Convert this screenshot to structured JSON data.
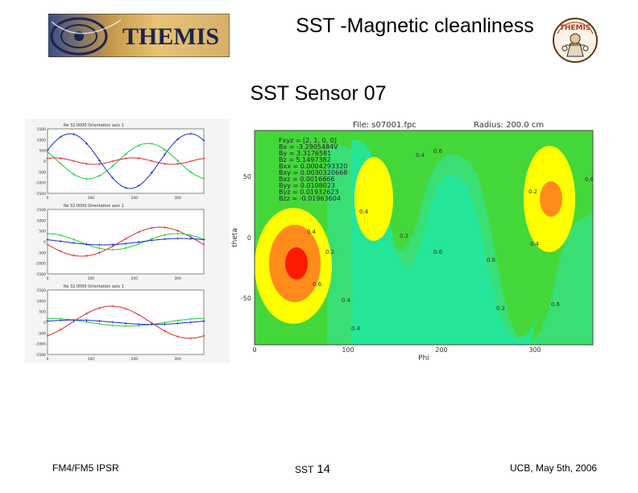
{
  "header": {
    "title": "SST -Magnetic cleanliness",
    "subtitle": "SST Sensor 07",
    "logo_text": "THEMIS",
    "mascot_text": "THEMIS"
  },
  "left_plots": [
    {
      "header_a": "Re",
      "header_b": "32.0000",
      "header_c": "Orientation axis",
      "header_d": "1",
      "x_ticks": [
        "0",
        "100",
        "200",
        "300"
      ],
      "y_ticks": [
        "1500",
        "1000",
        "500",
        "0",
        "-500",
        "-1000",
        "-1500"
      ]
    },
    {
      "header_a": "Re",
      "header_b": "32.0000",
      "header_c": "Orientation axis",
      "header_d": "1",
      "x_ticks": [
        "0",
        "100",
        "200",
        "300"
      ],
      "y_ticks": [
        "1500",
        "1000",
        "500",
        "0",
        "-500",
        "-1000",
        "-1500"
      ]
    },
    {
      "header_a": "Re",
      "header_b": "32.0000",
      "header_c": "Orientation axis",
      "header_d": "1",
      "x_ticks": [
        "0",
        "100",
        "200",
        "300"
      ],
      "y_ticks": [
        "1500",
        "1000",
        "500",
        "0",
        "-500",
        "-1000",
        "-1500"
      ]
    }
  ],
  "contour": {
    "file_label": "File: s07001.fpc",
    "radius_label": "Radius: 200.0 cm",
    "xlabel": "Phi",
    "ylabel": "theta",
    "x_ticks": [
      "0",
      "100",
      "200",
      "300"
    ],
    "y_ticks": [
      "50",
      "0",
      "-50"
    ],
    "params": [
      "Fxyz = [2, 1, 0, 0]",
      "Bx = -3.2905484V",
      "By = 3.3176581",
      "Bz = 5.1497382",
      "Bxx = 0.0004293320",
      "Bxy = 0.0030320668",
      "Bxz = 0.0016666",
      "Byy = 0.0108023",
      "Byz = 0.01932623",
      "Bzz = -0.01963604"
    ],
    "level_labels": [
      "0.6",
      "0.4",
      "0.2",
      "0.2",
      "0.4",
      "0.6",
      "0.6",
      "0.4",
      "0.2",
      "0.4",
      "0.6",
      "0.2",
      "0.4",
      "0.6",
      "0.6",
      "0.4"
    ]
  },
  "footer": {
    "left": "FM4/FM5 IPSR",
    "center_label": "SST",
    "page_number": "14",
    "right": "UCB, May 5th, 2006"
  },
  "colors": {
    "contour_green_light": "#44d73a",
    "contour_green": "#38e07a",
    "contour_teal": "#22e6a0",
    "contour_yellow": "#ffff00",
    "contour_orange": "#ff8c1a",
    "contour_red": "#ff1a00",
    "series_blue": "#1a2acc",
    "series_green": "#22c83a",
    "series_red": "#dd2a2a"
  }
}
